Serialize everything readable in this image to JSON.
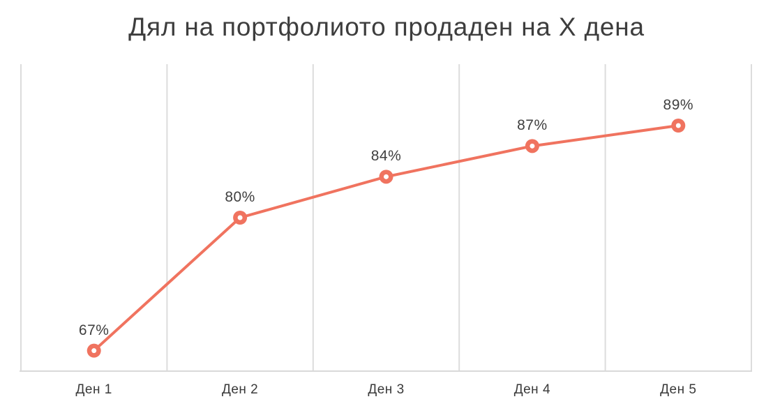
{
  "title": "Дял на портфолиото продаден на X дена",
  "chart_data": {
    "type": "line",
    "title": "Дял на портфолиото продаден на X дена",
    "categories": [
      "Ден 1",
      "Ден 2",
      "Ден 3",
      "Ден 4",
      "Ден 5"
    ],
    "values": [
      67,
      80,
      84,
      87,
      89
    ],
    "labels": [
      "67%",
      "80%",
      "84%",
      "87%",
      "89%"
    ],
    "xlabel": "",
    "ylabel": "",
    "ylim": [
      65,
      95
    ],
    "grid": "vertical-only",
    "legend": "none",
    "marker_style": "donut",
    "colors": {
      "line": "#f0735f",
      "marker": "#f0735f",
      "marker_center": "#ffffff",
      "gridline": "#dcdcdc",
      "axis_line": "#d9d9d9",
      "text": "#3d3d3d",
      "background": "#ffffff"
    }
  }
}
